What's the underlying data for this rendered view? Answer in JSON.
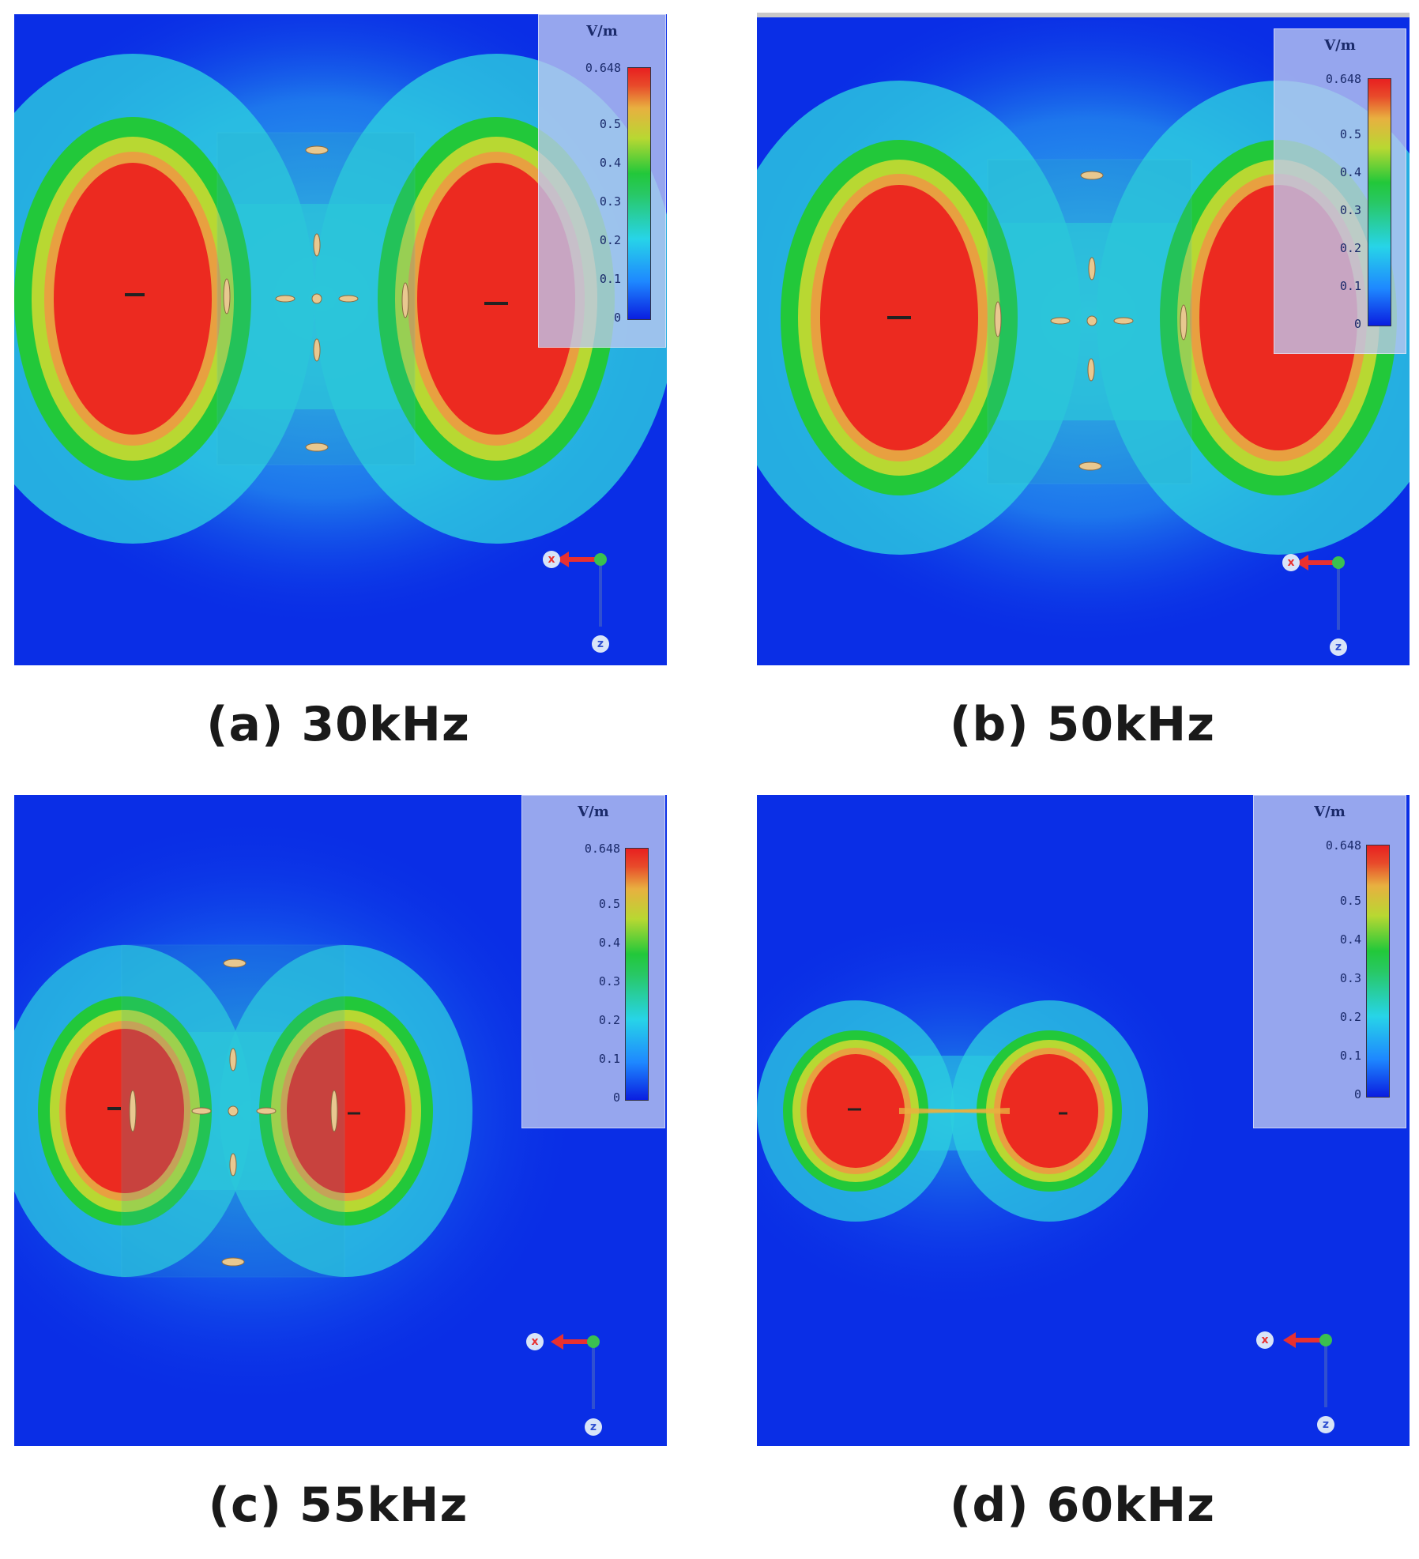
{
  "panels": [
    {
      "id": "a",
      "caption": "(a) 30kHz",
      "frequency_khz": 30
    },
    {
      "id": "b",
      "caption": "(b) 50kHz",
      "frequency_khz": 50
    },
    {
      "id": "c",
      "caption": "(c) 55kHz",
      "frequency_khz": 55
    },
    {
      "id": "d",
      "caption": "(d) 60kHz",
      "frequency_khz": 60
    }
  ],
  "legend": {
    "unit": "V/m",
    "max_label": "0.648",
    "ticks": [
      "0.5",
      "0.4",
      "0.3",
      "0.2",
      "0.1",
      "0"
    ]
  },
  "axes": {
    "x_label": "x",
    "z_label": "z"
  },
  "colors": {
    "background_field": "#0a2ee6",
    "hot": "#e82020",
    "mid": "#22c83a",
    "low": "#27d4e8",
    "axis_x": "#e83030",
    "axis_z": "#3050d0"
  }
}
